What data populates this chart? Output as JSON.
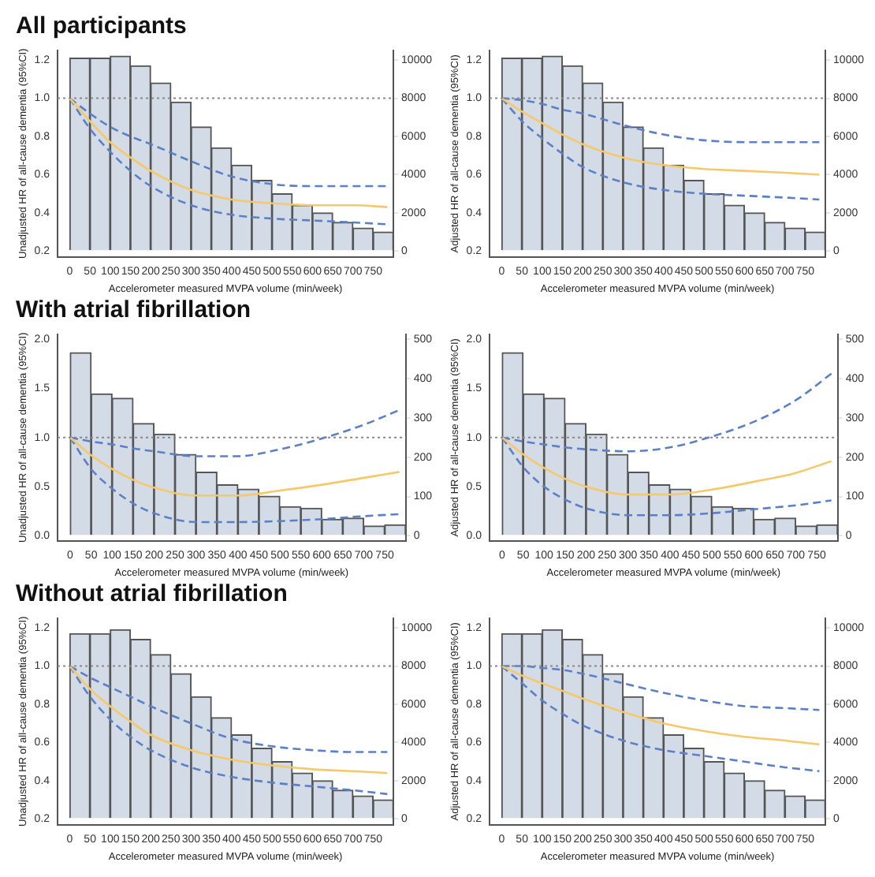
{
  "chart_data": [
    {
      "type": "line",
      "title": "All participants",
      "xlabel": "Accelerometer measured MVPA volume (min/week)",
      "ylabel": "Unadjusted HR of all-cause dementia (95%CI)",
      "xlim": [
        -30,
        800
      ],
      "xticks": [
        0,
        50,
        100,
        150,
        200,
        250,
        300,
        350,
        400,
        450,
        500,
        550,
        600,
        650,
        700,
        750
      ],
      "ylim": [
        0.17,
        1.25
      ],
      "yticks": [
        0.2,
        0.4,
        0.6,
        0.8,
        {
          "value": 1,
          "label": "1.0"
        },
        1.2
      ],
      "y2lim": [
        -300,
        10500
      ],
      "y2ticks": [
        0,
        2000,
        4000,
        6000,
        8000,
        10000
      ],
      "legend": false,
      "grid": false,
      "marker": "none",
      "ref_lines": [
        {
          "axis": "y",
          "value": 1,
          "color": "#888888",
          "line_style": "dotted"
        }
      ],
      "series": [
        {
          "type": "histogram",
          "axis": "y2",
          "color": "#d3dbe6",
          "bins": [
            0,
            50,
            100,
            150,
            200,
            250,
            300,
            350,
            400,
            450,
            500,
            550,
            600,
            650,
            700,
            750,
            800
          ],
          "values": [
            10100,
            10100,
            10200,
            9700,
            8800,
            7800,
            6500,
            5400,
            4500,
            3700,
            3000,
            2400,
            2000,
            1500,
            1200,
            1000
          ]
        },
        {
          "color": "#f5c86a",
          "line_style": "solid",
          "x": [
            0,
            50,
            100,
            150,
            200,
            300,
            400,
            500,
            600,
            700,
            785
          ],
          "values": [
            1,
            0.88,
            0.77,
            0.69,
            0.62,
            0.52,
            0.47,
            0.45,
            0.44,
            0.44,
            0.43
          ]
        },
        {
          "color": "#5b80c8",
          "line_style": "dashed",
          "x": [
            0,
            50,
            100,
            150,
            200,
            300,
            400,
            500,
            600,
            700,
            785
          ],
          "values": [
            1,
            0.92,
            0.85,
            0.8,
            0.76,
            0.67,
            0.59,
            0.55,
            0.54,
            0.54,
            0.54
          ]
        },
        {
          "color": "#5b80c8",
          "line_style": "dashed",
          "x": [
            0,
            50,
            100,
            150,
            200,
            300,
            400,
            500,
            600,
            700,
            785
          ],
          "values": [
            1,
            0.84,
            0.72,
            0.62,
            0.54,
            0.44,
            0.39,
            0.37,
            0.36,
            0.35,
            0.34
          ]
        }
      ]
    },
    {
      "type": "line",
      "xlabel": "Accelerometer measured MVPA volume (min/week)",
      "ylabel": "Adjusted HR of all-cause dementia (95%CI)",
      "xlim": [
        -30,
        800
      ],
      "xticks": [
        0,
        50,
        100,
        150,
        200,
        250,
        300,
        350,
        400,
        450,
        500,
        550,
        600,
        650,
        700,
        750
      ],
      "ylim": [
        0.17,
        1.25
      ],
      "yticks": [
        0.2,
        0.4,
        0.6,
        0.8,
        {
          "value": 1,
          "label": "1.0"
        },
        1.2
      ],
      "y2lim": [
        -300,
        10500
      ],
      "y2ticks": [
        0,
        2000,
        4000,
        6000,
        8000,
        10000
      ],
      "legend": false,
      "grid": false,
      "marker": "none",
      "ref_lines": [
        {
          "axis": "y",
          "value": 1,
          "color": "#888888",
          "line_style": "dotted"
        }
      ],
      "series": [
        {
          "type": "histogram",
          "axis": "y2",
          "color": "#d3dbe6",
          "bins": [
            0,
            50,
            100,
            150,
            200,
            250,
            300,
            350,
            400,
            450,
            500,
            550,
            600,
            650,
            700,
            750,
            800
          ],
          "values": [
            10100,
            10100,
            10200,
            9700,
            8800,
            7800,
            6500,
            5400,
            4500,
            3700,
            3000,
            2400,
            2000,
            1500,
            1200,
            1000
          ]
        },
        {
          "color": "#f5c86a",
          "line_style": "solid",
          "x": [
            0,
            50,
            100,
            150,
            200,
            300,
            400,
            500,
            600,
            700,
            785
          ],
          "values": [
            1,
            0.93,
            0.87,
            0.81,
            0.76,
            0.69,
            0.65,
            0.63,
            0.62,
            0.61,
            0.6
          ]
        },
        {
          "color": "#5b80c8",
          "line_style": "dashed",
          "x": [
            0,
            50,
            100,
            150,
            200,
            300,
            400,
            500,
            600,
            700,
            785
          ],
          "values": [
            1,
            0.99,
            0.97,
            0.94,
            0.92,
            0.86,
            0.81,
            0.78,
            0.77,
            0.77,
            0.77
          ]
        },
        {
          "color": "#5b80c8",
          "line_style": "dashed",
          "x": [
            0,
            50,
            100,
            150,
            200,
            300,
            400,
            500,
            600,
            700,
            785
          ],
          "values": [
            1,
            0.88,
            0.79,
            0.71,
            0.64,
            0.56,
            0.52,
            0.5,
            0.49,
            0.48,
            0.47
          ]
        }
      ]
    },
    {
      "type": "line",
      "title": "With atrial fibrillation",
      "xlabel": "Accelerometer measured MVPA volume (min/week)",
      "ylabel": "Unadjusted HR of all-cause dementia (95%CI)",
      "xlim": [
        -30,
        800
      ],
      "xticks": [
        0,
        50,
        100,
        150,
        200,
        250,
        300,
        350,
        400,
        450,
        500,
        550,
        600,
        650,
        700,
        750
      ],
      "ylim": [
        -0.05,
        2.05
      ],
      "yticks": [
        {
          "value": 0,
          "label": "0.0"
        },
        0.5,
        {
          "value": 1,
          "label": "1.0"
        },
        1.5,
        {
          "value": 2,
          "label": "2.0"
        }
      ],
      "y2lim": [
        -12.5,
        512.5
      ],
      "y2ticks": [
        0,
        100,
        200,
        300,
        400,
        500
      ],
      "legend": false,
      "grid": false,
      "marker": "none",
      "ref_lines": [
        {
          "axis": "y",
          "value": 1,
          "color": "#888888",
          "line_style": "dotted"
        }
      ],
      "series": [
        {
          "type": "histogram",
          "axis": "y2",
          "color": "#d3dbe6",
          "bins": [
            0,
            50,
            100,
            150,
            200,
            250,
            300,
            350,
            400,
            450,
            500,
            550,
            600,
            650,
            700,
            750,
            800
          ],
          "values": [
            466,
            361,
            350,
            286,
            259,
            207,
            162,
            130,
            119,
            101,
            74,
            70,
            42,
            45,
            25,
            28
          ]
        },
        {
          "color": "#f5c86a",
          "line_style": "solid",
          "x": [
            0,
            50,
            100,
            150,
            200,
            300,
            400,
            500,
            600,
            700,
            785
          ],
          "values": [
            1,
            0.82,
            0.68,
            0.57,
            0.49,
            0.41,
            0.41,
            0.46,
            0.52,
            0.59,
            0.65
          ]
        },
        {
          "color": "#5b80c8",
          "line_style": "dashed",
          "x": [
            0,
            50,
            100,
            150,
            200,
            300,
            400,
            500,
            600,
            700,
            785
          ],
          "values": [
            1,
            0.96,
            0.93,
            0.89,
            0.86,
            0.81,
            0.81,
            0.88,
            0.99,
            1.13,
            1.28
          ]
        },
        {
          "color": "#5b80c8",
          "line_style": "dashed",
          "x": [
            0,
            50,
            100,
            150,
            200,
            300,
            400,
            500,
            600,
            700,
            785
          ],
          "values": [
            1,
            0.68,
            0.48,
            0.33,
            0.23,
            0.14,
            0.14,
            0.15,
            0.17,
            0.2,
            0.22
          ]
        }
      ]
    },
    {
      "type": "line",
      "xlabel": "Accelerometer measured MVPA volume (min/week)",
      "ylabel": "Adjusted HR of all-cause dementia (95%CI)",
      "xlim": [
        -30,
        800
      ],
      "xticks": [
        0,
        50,
        100,
        150,
        200,
        250,
        300,
        350,
        400,
        450,
        500,
        550,
        600,
        650,
        700,
        750
      ],
      "ylim": [
        -0.05,
        2.05
      ],
      "yticks": [
        {
          "value": 0,
          "label": "0.0"
        },
        0.5,
        {
          "value": 1,
          "label": "1.0"
        },
        1.5,
        {
          "value": 2,
          "label": "2.0"
        }
      ],
      "y2lim": [
        -12.5,
        512.5
      ],
      "y2ticks": [
        0,
        100,
        200,
        300,
        400,
        500
      ],
      "legend": false,
      "grid": false,
      "marker": "none",
      "ref_lines": [
        {
          "axis": "y",
          "value": 1,
          "color": "#888888",
          "line_style": "dotted"
        }
      ],
      "series": [
        {
          "type": "histogram",
          "axis": "y2",
          "color": "#d3dbe6",
          "bins": [
            0,
            50,
            100,
            150,
            200,
            250,
            300,
            350,
            400,
            450,
            500,
            550,
            600,
            650,
            700,
            750,
            800
          ],
          "values": [
            466,
            361,
            350,
            286,
            259,
            207,
            162,
            130,
            119,
            101,
            74,
            70,
            42,
            45,
            25,
            28
          ]
        },
        {
          "color": "#f5c86a",
          "line_style": "solid",
          "x": [
            0,
            50,
            100,
            150,
            200,
            300,
            400,
            500,
            600,
            700,
            785
          ],
          "values": [
            1,
            0.83,
            0.69,
            0.58,
            0.5,
            0.42,
            0.42,
            0.47,
            0.55,
            0.64,
            0.76
          ]
        },
        {
          "color": "#5b80c8",
          "line_style": "dashed",
          "x": [
            0,
            50,
            100,
            150,
            200,
            300,
            400,
            500,
            600,
            700,
            785
          ],
          "values": [
            1,
            0.96,
            0.93,
            0.9,
            0.88,
            0.86,
            0.9,
            1.01,
            1.16,
            1.38,
            1.65
          ]
        },
        {
          "color": "#5b80c8",
          "line_style": "dashed",
          "x": [
            0,
            50,
            100,
            150,
            200,
            300,
            400,
            500,
            600,
            700,
            785
          ],
          "values": [
            1,
            0.7,
            0.5,
            0.37,
            0.28,
            0.21,
            0.21,
            0.23,
            0.27,
            0.31,
            0.36
          ]
        }
      ]
    },
    {
      "type": "line",
      "title": "Without atrial fibrillation",
      "xlabel": "Accelerometer measured MVPA volume (min/week)",
      "ylabel": "Unadjusted HR of all-cause dementia (95%CI)",
      "xlim": [
        -30,
        800
      ],
      "xticks": [
        0,
        50,
        100,
        150,
        200,
        250,
        300,
        350,
        400,
        450,
        500,
        550,
        600,
        650,
        700,
        750
      ],
      "ylim": [
        0.17,
        1.25
      ],
      "yticks": [
        0.2,
        0.4,
        0.6,
        0.8,
        {
          "value": 1,
          "label": "1.0"
        },
        1.2
      ],
      "y2lim": [
        -300,
        10500
      ],
      "y2ticks": [
        0,
        2000,
        4000,
        6000,
        8000,
        10000
      ],
      "legend": false,
      "grid": false,
      "marker": "none",
      "ref_lines": [
        {
          "axis": "y",
          "value": 1,
          "color": "#888888",
          "line_style": "dotted"
        }
      ],
      "series": [
        {
          "type": "histogram",
          "axis": "y2",
          "color": "#d3dbe6",
          "bins": [
            0,
            50,
            100,
            150,
            200,
            250,
            300,
            350,
            400,
            450,
            500,
            550,
            600,
            650,
            700,
            750,
            800
          ],
          "values": [
            9700,
            9700,
            9900,
            9400,
            8600,
            7600,
            6400,
            5300,
            4400,
            3700,
            3000,
            2400,
            2000,
            1500,
            1200,
            1000
          ]
        },
        {
          "color": "#f5c86a",
          "line_style": "solid",
          "x": [
            0,
            50,
            100,
            150,
            200,
            300,
            400,
            500,
            600,
            700,
            785
          ],
          "values": [
            1,
            0.88,
            0.79,
            0.71,
            0.64,
            0.56,
            0.51,
            0.48,
            0.46,
            0.45,
            0.44
          ]
        },
        {
          "color": "#5b80c8",
          "line_style": "dashed",
          "x": [
            0,
            50,
            100,
            150,
            200,
            300,
            400,
            500,
            600,
            700,
            785
          ],
          "values": [
            1,
            0.94,
            0.89,
            0.84,
            0.79,
            0.7,
            0.62,
            0.58,
            0.56,
            0.55,
            0.55
          ]
        },
        {
          "color": "#5b80c8",
          "line_style": "dashed",
          "x": [
            0,
            50,
            100,
            150,
            200,
            300,
            400,
            500,
            600,
            700,
            785
          ],
          "values": [
            1,
            0.84,
            0.72,
            0.63,
            0.56,
            0.47,
            0.42,
            0.39,
            0.37,
            0.35,
            0.33
          ]
        }
      ]
    },
    {
      "type": "line",
      "xlabel": "Accelerometer measured MVPA volume (min/week)",
      "ylabel": "Adjusted HR of all-cause dementia (95%CI)",
      "xlim": [
        -30,
        800
      ],
      "xticks": [
        0,
        50,
        100,
        150,
        200,
        250,
        300,
        350,
        400,
        450,
        500,
        550,
        600,
        650,
        700,
        750
      ],
      "ylim": [
        0.17,
        1.25
      ],
      "yticks": [
        0.2,
        0.4,
        0.6,
        0.8,
        {
          "value": 1,
          "label": "1.0"
        },
        1.2
      ],
      "y2lim": [
        -300,
        10500
      ],
      "y2ticks": [
        0,
        2000,
        4000,
        6000,
        8000,
        10000
      ],
      "legend": false,
      "grid": false,
      "marker": "none",
      "ref_lines": [
        {
          "axis": "y",
          "value": 1,
          "color": "#888888",
          "line_style": "dotted"
        }
      ],
      "series": [
        {
          "type": "histogram",
          "axis": "y2",
          "color": "#d3dbe6",
          "bins": [
            0,
            50,
            100,
            150,
            200,
            250,
            300,
            350,
            400,
            450,
            500,
            550,
            600,
            650,
            700,
            750,
            800
          ],
          "values": [
            9700,
            9700,
            9900,
            9400,
            8600,
            7600,
            6400,
            5300,
            4400,
            3700,
            3000,
            2400,
            2000,
            1500,
            1200,
            1000
          ]
        },
        {
          "color": "#f5c86a",
          "line_style": "solid",
          "x": [
            0,
            50,
            100,
            150,
            200,
            300,
            400,
            500,
            600,
            700,
            785
          ],
          "values": [
            1,
            0.95,
            0.91,
            0.87,
            0.83,
            0.76,
            0.7,
            0.66,
            0.63,
            0.61,
            0.59
          ]
        },
        {
          "color": "#5b80c8",
          "line_style": "dashed",
          "x": [
            0,
            50,
            100,
            150,
            200,
            300,
            400,
            500,
            600,
            700,
            785
          ],
          "values": [
            1,
            1,
            0.99,
            0.98,
            0.96,
            0.91,
            0.86,
            0.82,
            0.79,
            0.78,
            0.77
          ]
        },
        {
          "color": "#5b80c8",
          "line_style": "dashed",
          "x": [
            0,
            50,
            100,
            150,
            200,
            300,
            400,
            500,
            600,
            700,
            785
          ],
          "values": [
            1,
            0.91,
            0.82,
            0.75,
            0.69,
            0.61,
            0.56,
            0.53,
            0.5,
            0.47,
            0.45
          ]
        }
      ]
    }
  ]
}
